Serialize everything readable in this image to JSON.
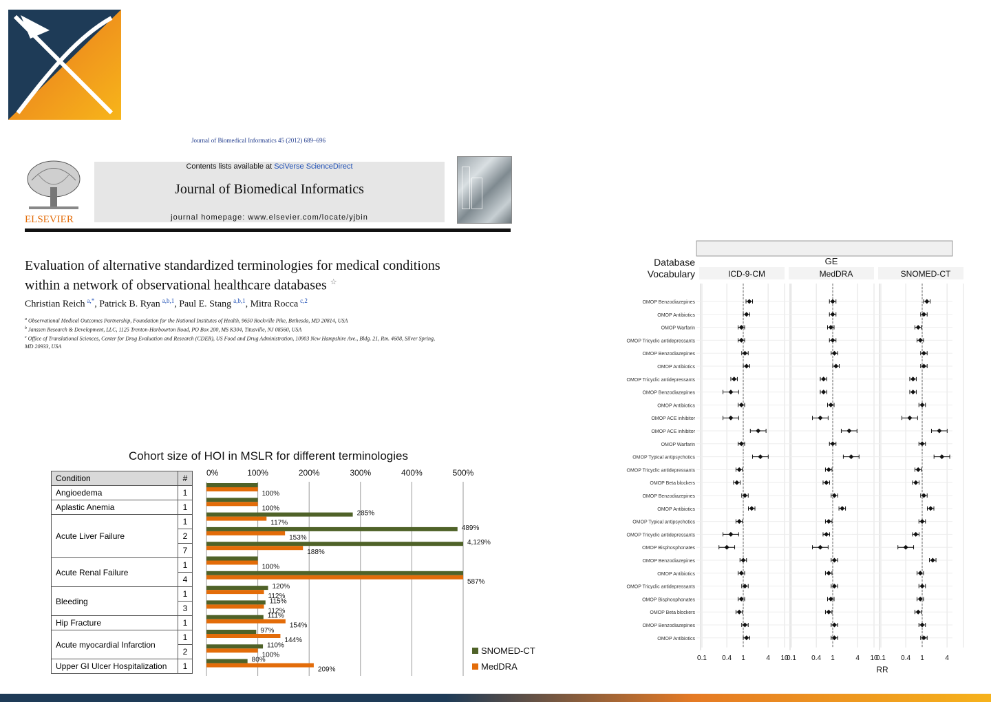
{
  "journal_citation": "Journal of Biomedical Informatics 45 (2012) 689–696",
  "journal_header": {
    "contents_prefix": "Contents lists available at ",
    "contents_link": "SciVerse ScienceDirect",
    "journal_name": "Journal of Biomedical Informatics",
    "homepage": "journal homepage: www.elsevier.com/locate/yjbin",
    "publisher": "ELSEVIER"
  },
  "article": {
    "title_line1": "Evaluation of alternative standardized terminologies for medical conditions",
    "title_line2": "within a network of observational healthcare databases",
    "star": "☆",
    "authors": [
      {
        "name": "Christian Reich",
        "sup": "a,*"
      },
      {
        "name": "Patrick B. Ryan",
        "sup": "a,b,1"
      },
      {
        "name": "Paul E. Stang",
        "sup": "a,b,1"
      },
      {
        "name": "Mitra Rocca",
        "sup": "c,2"
      }
    ],
    "affiliations": [
      {
        "sup": "a",
        "text": "Observational Medical Outcomes Partnership, Foundation for the National Institutes of Health, 9650 Rockville Pike, Bethesda, MD 20814, USA"
      },
      {
        "sup": "b",
        "text": "Janssen Research & Development, LLC, 1125 Trenton-Harbourton Road, PO Box 200, MS K304, Titusville, NJ 08560, USA"
      },
      {
        "sup": "c",
        "text": "Office of Translational Sciences, Center for Drug Evaluation and Research (CDER), US Food and Drug Administration, 10903 New Hampshire Ave., Bldg. 21, Rm. 4608, Silver Spring,"
      },
      {
        "sup": "",
        "text": "MD 20933, USA"
      }
    ]
  },
  "cohort_chart": {
    "title": "Cohort size of HOI in MSLR for different terminologies",
    "header_condition": "Condition",
    "header_num": "#",
    "x_ticks": [
      "0%",
      "100%",
      "200%",
      "300%",
      "400%",
      "500%"
    ],
    "legend": [
      "SNOMED-CT",
      "MedDRA"
    ],
    "colors": {
      "snomed": "#4f6228",
      "meddra": "#e36c09"
    },
    "groups": [
      {
        "condition": "Angioedema",
        "rows": [
          {
            "n": "1",
            "snomed": 100,
            "meddra": 100,
            "snomed_label": "",
            "meddra_label": "100%"
          }
        ]
      },
      {
        "condition": "Aplastic Anemia",
        "rows": [
          {
            "n": "1",
            "snomed": 100,
            "meddra": 100,
            "snomed_label": "",
            "meddra_label": "100%"
          }
        ]
      },
      {
        "condition": "Acute Liver Failure",
        "rows": [
          {
            "n": "1",
            "snomed": 285,
            "meddra": 117,
            "snomed_label": "285%",
            "meddra_label": "117%"
          },
          {
            "n": "2",
            "snomed": 489,
            "meddra": 153,
            "snomed_label": "489%",
            "meddra_label": "153%"
          },
          {
            "n": "7",
            "snomed": 4129,
            "meddra": 188,
            "snomed_label": "4,129%",
            "meddra_label": "188%"
          }
        ]
      },
      {
        "condition": "Acute Renal Failure",
        "rows": [
          {
            "n": "1",
            "snomed": 100,
            "meddra": 100,
            "snomed_label": "",
            "meddra_label": "100%"
          },
          {
            "n": "4",
            "snomed": 587,
            "meddra": 587,
            "snomed_label": "",
            "meddra_label": "587%"
          }
        ]
      },
      {
        "condition": "Bleeding",
        "rows": [
          {
            "n": "1",
            "snomed": 120,
            "meddra": 112,
            "snomed_label": "120%",
            "meddra_label": "112%"
          },
          {
            "n": "3",
            "snomed": 115,
            "meddra": 112,
            "snomed_label": "115%",
            "meddra_label": "112%"
          }
        ]
      },
      {
        "condition": "Hip Fracture",
        "rows": [
          {
            "n": "1",
            "snomed": 111,
            "meddra": 154,
            "snomed_label": "111%",
            "meddra_label": "154%"
          }
        ]
      },
      {
        "condition": "Acute myocardial Infarction",
        "rows": [
          {
            "n": "1",
            "snomed": 97,
            "meddra": 144,
            "snomed_label": "97%",
            "meddra_label": "144%"
          },
          {
            "n": "2",
            "snomed": 110,
            "meddra": 100,
            "snomed_label": "110%",
            "meddra_label": "100%"
          }
        ]
      },
      {
        "condition": "Upper GI Ulcer Hospitalization",
        "rows": [
          {
            "n": "1",
            "snomed": 80,
            "meddra": 209,
            "snomed_label": "80%",
            "meddra_label": "209%"
          }
        ]
      }
    ]
  },
  "forest_plot": {
    "header_db": "Database",
    "header_vocab": "Vocabulary",
    "header_ge": "GE",
    "columns": [
      "ICD-9-CM",
      "MedDRA",
      "SNOMED-CT"
    ],
    "x_ticks": [
      "0.1",
      "0.4",
      "1",
      "4",
      "10"
    ],
    "x_label": "RR",
    "rows": [
      {
        "label": "OMOP Benzodiazepines",
        "rr": [
          1.4,
          1.0,
          1.3
        ]
      },
      {
        "label": "OMOP Antibiotics",
        "rr": [
          1.2,
          1.0,
          1.1
        ]
      },
      {
        "label": "OMOP Warfarin",
        "rr": [
          0.9,
          0.9,
          0.8
        ]
      },
      {
        "label": "OMOP Tricyclic antidepressants",
        "rr": [
          0.9,
          1.0,
          0.9
        ]
      },
      {
        "label": "OMOP Benzodiazepines",
        "rr": [
          1.1,
          1.1,
          1.1
        ]
      },
      {
        "label": "OMOP Antibiotics",
        "rr": [
          1.2,
          1.2,
          1.1
        ]
      },
      {
        "label": "OMOP Tricyclic antidepressants",
        "rr": [
          0.6,
          0.6,
          0.6
        ]
      },
      {
        "label": "OMOP Benzodiazepines",
        "rr": [
          0.5,
          0.6,
          0.6
        ]
      },
      {
        "label": "OMOP Antibiotics",
        "rr": [
          0.9,
          0.9,
          1.0
        ]
      },
      {
        "label": "OMOP ACE inhibitor",
        "rr": [
          0.5,
          0.5,
          0.5
        ]
      },
      {
        "label": "OMOP ACE inhibitor",
        "rr": [
          2.3,
          2.5,
          2.6
        ]
      },
      {
        "label": "OMOP Warfarin",
        "rr": [
          0.9,
          1.0,
          1.0
        ]
      },
      {
        "label": "OMOP Typical antipsychotics",
        "rr": [
          2.6,
          2.8,
          3.0
        ]
      },
      {
        "label": "OMOP Tricyclic antidepressants",
        "rr": [
          0.8,
          0.8,
          0.8
        ]
      },
      {
        "label": "OMOP Beta blockers",
        "rr": [
          0.7,
          0.7,
          0.7
        ]
      },
      {
        "label": "OMOP Benzodiazepines",
        "rr": [
          1.1,
          1.1,
          1.1
        ]
      },
      {
        "label": "OMOP Antibiotics",
        "rr": [
          1.6,
          1.7,
          1.6
        ]
      },
      {
        "label": "OMOP Typical antipsychotics",
        "rr": [
          0.8,
          0.8,
          1.0
        ]
      },
      {
        "label": "OMOP Tricyclic antidepressants",
        "rr": [
          0.5,
          0.7,
          0.7
        ]
      },
      {
        "label": "OMOP Bisphosphonates",
        "rr": [
          0.4,
          0.5,
          0.4
        ]
      },
      {
        "label": "OMOP Benzodiazepines",
        "rr": [
          1.0,
          1.1,
          1.8
        ]
      },
      {
        "label": "OMOP Antibiotics",
        "rr": [
          0.9,
          0.8,
          0.9
        ]
      },
      {
        "label": "OMOP Tricyclic antidepressants",
        "rr": [
          1.1,
          1.1,
          1.0
        ]
      },
      {
        "label": "OMOP Bisphosphonates",
        "rr": [
          0.9,
          0.9,
          0.9
        ]
      },
      {
        "label": "OMOP Beta blockers",
        "rr": [
          0.8,
          0.8,
          0.8
        ]
      },
      {
        "label": "OMOP Benzodiazepines",
        "rr": [
          1.1,
          1.1,
          1.0
        ]
      },
      {
        "label": "OMOP Antibiotics",
        "rr": [
          1.2,
          1.1,
          1.1
        ]
      }
    ]
  }
}
